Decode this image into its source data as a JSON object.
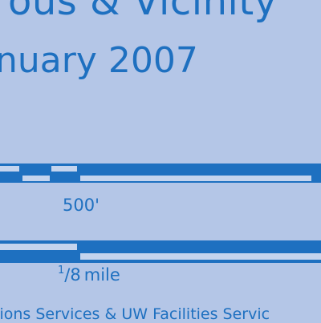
{
  "map": {
    "title_partial": "ous & Vicinity",
    "date_partial": "nuary 2007",
    "credit_partial": "tions Services & UW Facilities Servic"
  },
  "scale_bars": {
    "feet": {
      "label": "500'",
      "segments": 5
    },
    "miles": {
      "label_numerator": "1",
      "label_denominator": "8",
      "label_unit": "mile",
      "segments": 2
    }
  },
  "colors": {
    "background": "#b4c6e7",
    "ink": "#1e70c0",
    "bar_light": "#c4d4ee"
  }
}
